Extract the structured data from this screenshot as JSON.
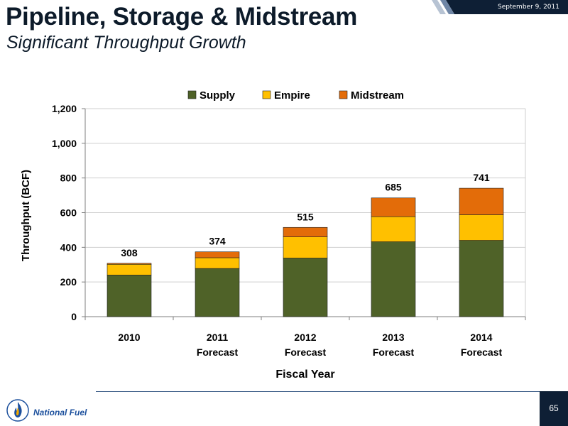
{
  "header": {
    "title": "Pipeline, Storage & Midstream",
    "subtitle": "Significant Throughput Growth",
    "date": "September 9, 2011"
  },
  "footer": {
    "brand": "National Fuel",
    "page_number": "65"
  },
  "colors": {
    "supply": "#4f6228",
    "empire": "#ffc000",
    "midstream": "#e36c09",
    "navy": "#0e1f35"
  },
  "chart_data": {
    "type": "bar",
    "stacked": true,
    "xlabel": "Fiscal Year",
    "ylabel": "Throughput (BCF)",
    "ylim": [
      0,
      1200
    ],
    "yticks": [
      0,
      200,
      400,
      600,
      800,
      1000,
      1200
    ],
    "ytick_labels": [
      "0",
      "200",
      "400",
      "600",
      "800",
      "1,000",
      "1,200"
    ],
    "categories": [
      [
        "2010"
      ],
      [
        "2011",
        "Forecast"
      ],
      [
        "2012",
        "Forecast"
      ],
      [
        "2013",
        "Forecast"
      ],
      [
        "2014",
        "Forecast"
      ]
    ],
    "series": [
      {
        "name": "Supply",
        "values": [
          240,
          278,
          338,
          432,
          440
        ]
      },
      {
        "name": "Empire",
        "values": [
          62,
          62,
          122,
          145,
          148
        ]
      },
      {
        "name": "Midstream",
        "values": [
          6,
          34,
          55,
          108,
          153
        ]
      }
    ],
    "totals": [
      308,
      374,
      515,
      685,
      741
    ],
    "legend_position": "top",
    "grid": "horizontal"
  }
}
